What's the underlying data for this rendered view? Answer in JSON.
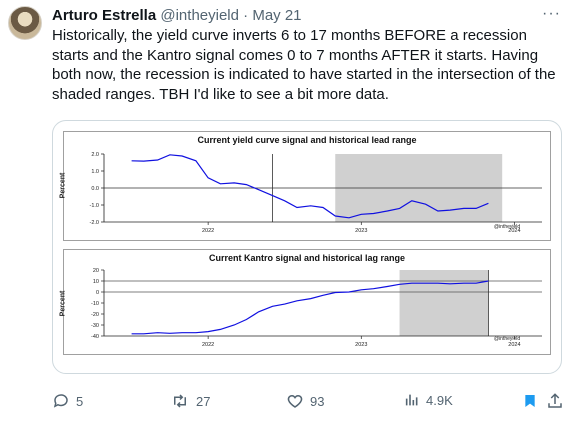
{
  "tweet": {
    "author_name": "Arturo Estrella",
    "handle": "@intheyield",
    "separator": "·",
    "date": "May 21",
    "text": "Historically, the yield curve inverts 6 to 17 months BEFORE a recession starts and the Kantro signal comes 0 to 7 months AFTER it starts. Having both now, the recession is indicated to have started in the intersection of the shaded ranges. TBH I'd like to see a bit more data.",
    "more_icon": "more-dots-icon"
  },
  "actions": {
    "replies": "5",
    "retweets": "27",
    "likes": "93",
    "views": "4.9K"
  },
  "colors": {
    "line": "#1010e0",
    "shade": "#d0d0d0",
    "text_secondary": "#536471",
    "bookmark": "#1d9bf0"
  },
  "chart_data": [
    {
      "type": "line",
      "title": "Current yield curve signal and historical lead range",
      "ylabel": "Percent",
      "credit": "@intheyield",
      "ylim": [
        -2.0,
        2.0
      ],
      "yticks": [
        "2.0",
        "1.0",
        "0.0",
        "-1.0",
        "-2.0"
      ],
      "ytick_values": [
        2.0,
        1.0,
        0.0,
        -1.0,
        -2.0
      ],
      "xlim": [
        2021.32,
        2024.18
      ],
      "xticks": [
        "2022",
        "2023",
        "2024"
      ],
      "xtick_values": [
        2022.0,
        2023.0,
        2024.0
      ],
      "shaded_range": [
        2022.83,
        2023.92
      ],
      "vertical_line": 2022.42,
      "zero_line": 0.0,
      "series": [
        {
          "x": [
            2021.5,
            2021.58,
            2021.67,
            2021.75,
            2021.83,
            2021.92,
            2022.0,
            2022.08,
            2022.17,
            2022.25,
            2022.33,
            2022.42,
            2022.5,
            2022.58,
            2022.67,
            2022.75,
            2022.83,
            2022.92,
            2023.0,
            2023.08,
            2023.17,
            2023.25,
            2023.33,
            2023.42,
            2023.5,
            2023.58,
            2023.67,
            2023.75,
            2023.83
          ],
          "y": [
            1.6,
            1.58,
            1.65,
            1.95,
            1.88,
            1.6,
            0.6,
            0.25,
            0.3,
            0.2,
            -0.1,
            -0.45,
            -0.75,
            -1.15,
            -1.05,
            -1.15,
            -1.65,
            -1.75,
            -1.55,
            -1.5,
            -1.35,
            -1.2,
            -0.75,
            -0.95,
            -1.35,
            -1.3,
            -1.2,
            -1.2,
            -0.9
          ]
        }
      ]
    },
    {
      "type": "line",
      "title": "Current Kantro signal and historical lag range",
      "ylabel": "Percent",
      "credit": "@intheyield",
      "ylim": [
        -40,
        20
      ],
      "yticks": [
        "20",
        "10",
        "0",
        "-10",
        "-20",
        "-30",
        "-40"
      ],
      "ytick_values": [
        20,
        10,
        0,
        -10,
        -20,
        -30,
        -40
      ],
      "xlim": [
        2021.32,
        2024.18
      ],
      "xticks": [
        "2022",
        "2023",
        "2024"
      ],
      "xtick_values": [
        2022.0,
        2023.0,
        2024.0
      ],
      "shaded_range": [
        2023.25,
        2023.83
      ],
      "vertical_line": 2023.83,
      "gridlines": [
        10,
        0
      ],
      "series": [
        {
          "x": [
            2021.5,
            2021.58,
            2021.67,
            2021.75,
            2021.83,
            2021.92,
            2022.0,
            2022.08,
            2022.17,
            2022.25,
            2022.33,
            2022.42,
            2022.5,
            2022.58,
            2022.67,
            2022.75,
            2022.83,
            2022.92,
            2023.0,
            2023.08,
            2023.17,
            2023.25,
            2023.33,
            2023.42,
            2023.5,
            2023.58,
            2023.67,
            2023.75,
            2023.83
          ],
          "y": [
            -38,
            -38,
            -37,
            -37.5,
            -37,
            -37,
            -36,
            -34,
            -30,
            -25,
            -18,
            -13,
            -11,
            -8,
            -6,
            -3,
            -0.5,
            0,
            2,
            3,
            5,
            7,
            8,
            8,
            8,
            7.5,
            8,
            8,
            10
          ]
        }
      ]
    }
  ]
}
